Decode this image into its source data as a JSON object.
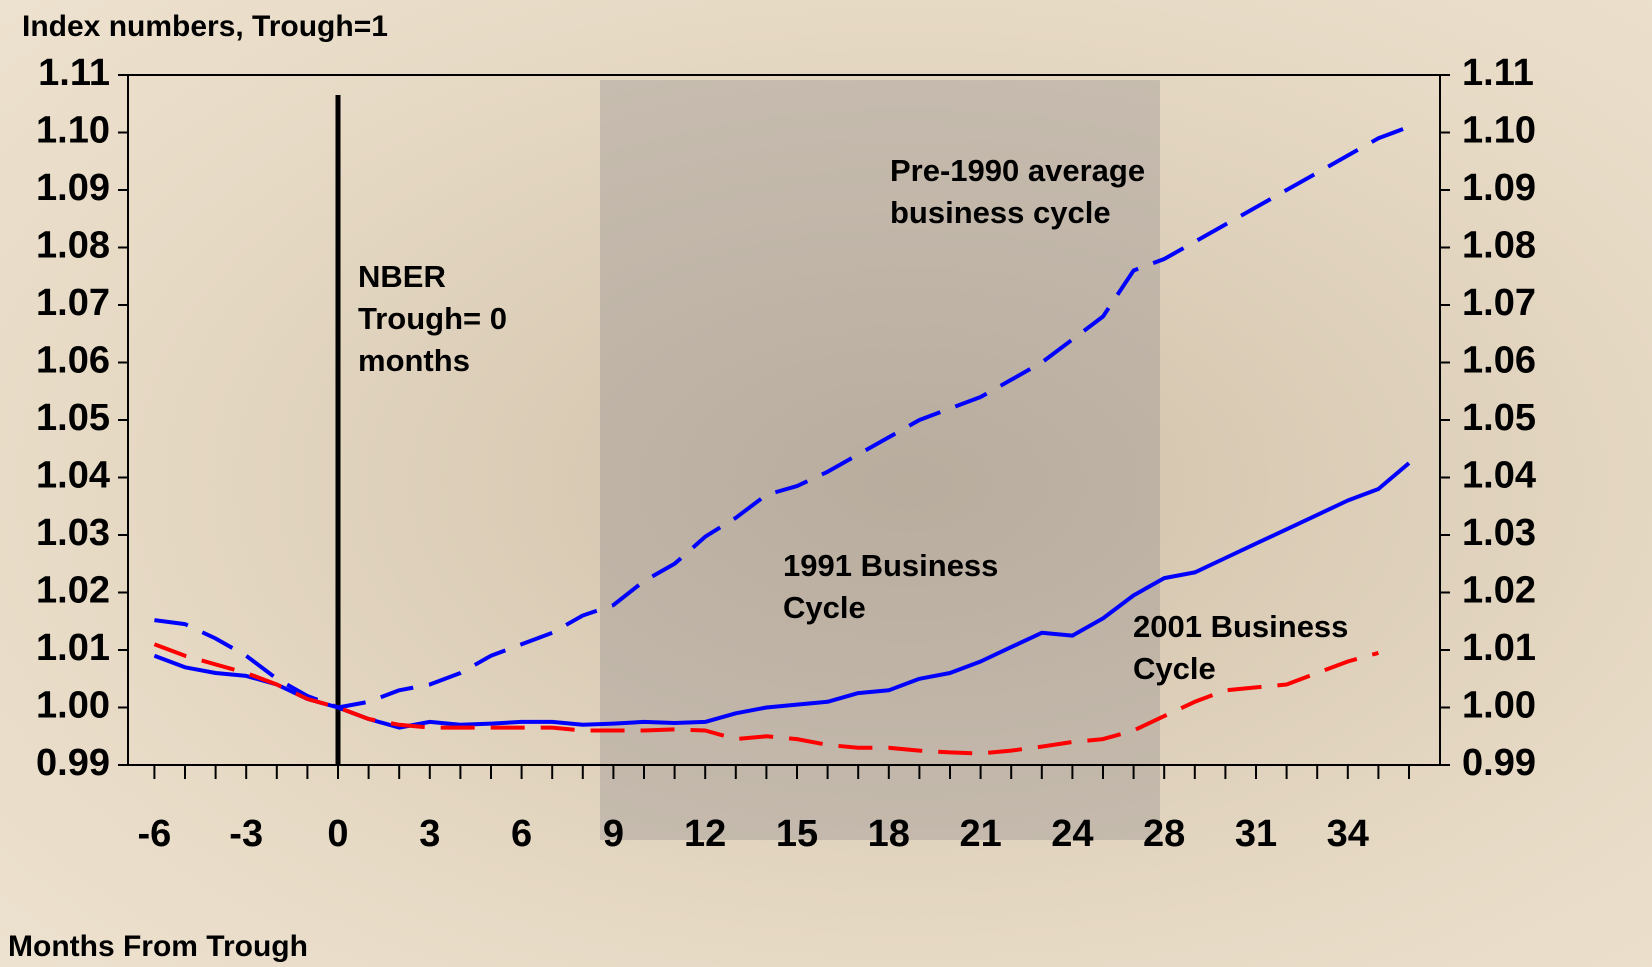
{
  "chart_data": {
    "type": "line",
    "y_axis_label": "Index numbers, Trough=1",
    "x_axis_label": "Months From Trough",
    "categories": [
      "-6",
      null,
      null,
      "-3",
      null,
      null,
      "0",
      null,
      null,
      "3",
      null,
      null,
      "6",
      null,
      null,
      "9",
      null,
      null,
      "12",
      null,
      null,
      "15",
      null,
      null,
      "18",
      null,
      null,
      "21",
      null,
      null,
      "24",
      null,
      null,
      "28",
      null,
      null,
      "31",
      null,
      null,
      "34",
      null,
      null
    ],
    "ylim": [
      0.99,
      1.11
    ],
    "yticks": [
      0.99,
      1.01,
      1.02,
      1.03,
      1.04,
      1.05,
      1.06,
      1.07,
      1.08,
      1.09,
      {
        "value": 1.1,
        "label": "1.10"
      },
      1.11,
      {
        "value": 1,
        "label": "1.00"
      }
    ],
    "vline_category": 6,
    "series": [
      {
        "color": "#0000ff",
        "style": "dashed",
        "values": [
          1.0152,
          1.0145,
          1.012,
          1.009,
          1.005,
          1.002,
          1.0,
          1.001,
          1.003,
          1.004,
          1.006,
          1.009,
          1.011,
          1.013,
          1.016,
          1.0178,
          1.022,
          1.025,
          1.0297,
          1.033,
          1.037,
          1.0385,
          1.041,
          1.044,
          1.047,
          1.05,
          1.052,
          1.054,
          1.057,
          1.06,
          1.064,
          1.068,
          1.076,
          1.078,
          1.081,
          1.084,
          1.087,
          1.09,
          1.093,
          1.096,
          1.099,
          1.101
        ]
      },
      {
        "color": "#0000ff",
        "style": "solid",
        "values": [
          1.009,
          1.007,
          1.006,
          1.0055,
          1.004,
          1.0015,
          1.0,
          0.998,
          0.9965,
          0.9975,
          0.997,
          0.9972,
          0.9975,
          0.9975,
          0.997,
          0.9972,
          0.9975,
          0.9973,
          0.9975,
          0.999,
          1.0,
          1.0005,
          1.001,
          1.0025,
          1.003,
          1.005,
          1.006,
          1.008,
          1.0105,
          1.013,
          1.0125,
          1.0155,
          1.0195,
          1.0225,
          1.0235,
          1.026,
          1.0285,
          1.031,
          1.0335,
          1.036,
          1.038,
          1.0425
        ]
      },
      {
        "color": "#ff0000",
        "style": "dashed",
        "values": [
          1.011,
          1.009,
          1.0075,
          1.006,
          1.004,
          1.0015,
          1.0,
          0.998,
          0.997,
          0.9965,
          0.9965,
          0.9965,
          0.9965,
          0.9965,
          0.996,
          0.996,
          0.996,
          0.9962,
          0.996,
          0.9945,
          0.995,
          0.9945,
          0.9935,
          0.993,
          0.993,
          0.9925,
          0.9922,
          0.992,
          0.9925,
          0.9932,
          0.994,
          0.9945,
          0.996,
          0.9985,
          1.001,
          1.003,
          1.0035,
          1.004,
          1.006,
          1.008,
          1.0095,
          null
        ]
      }
    ],
    "annotations": [
      {
        "lines": [
          "NBER",
          "Trough= 0",
          "months"
        ]
      },
      {
        "lines": [
          "Pre-1990 average",
          "business cycle"
        ]
      },
      {
        "lines": [
          "1991 Business",
          "Cycle"
        ]
      },
      {
        "lines": [
          "2001 Business",
          "Cycle"
        ]
      }
    ]
  }
}
